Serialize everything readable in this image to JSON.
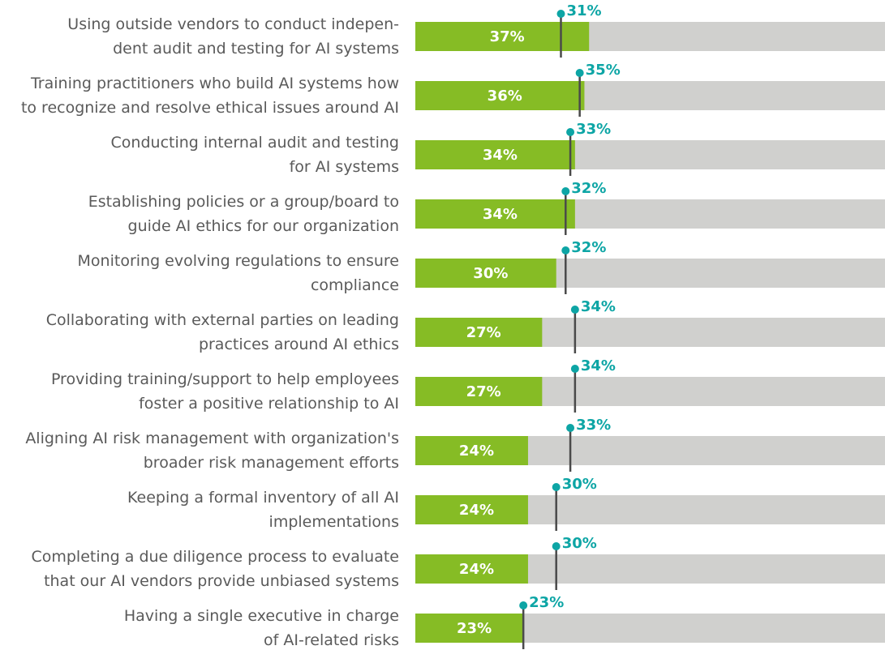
{
  "chart_data": {
    "type": "bar_marker",
    "categories": [
      "Using outside vendors to conduct indepen-\ndent audit and testing for AI systems",
      "Training practitioners who build AI systems how\nto recognize and resolve ethical issues around AI",
      "Conducting internal audit and testing\nfor AI systems",
      "Establishing policies or a group/board to\nguide AI ethics for our organization",
      "Monitoring evolving regulations to ensure\ncompliance",
      "Collaborating with external parties on leading\npractices around AI ethics",
      "Providing training/support to help employees\nfoster a positive relationship to AI",
      "Aligning AI risk management with organization's\nbroader risk management efforts",
      "Keeping a formal inventory of all AI\nimplementations",
      "Completing a due diligence process to evaluate\nthat our AI vendors provide unbiased systems",
      "Having a single executive in charge\nof AI-related risks"
    ],
    "series": [
      {
        "color": "#86bc25",
        "values": [
          37,
          36,
          34,
          34,
          30,
          27,
          27,
          24,
          24,
          24,
          23
        ],
        "value_labels": [
          "37%",
          "36%",
          "34%",
          "34%",
          "30%",
          "27%",
          "27%",
          "24%",
          "24%",
          "24%",
          "23%"
        ]
      },
      {
        "color": "#0da5a5",
        "values": [
          31,
          35,
          33,
          32,
          32,
          34,
          34,
          33,
          30,
          30,
          23
        ],
        "value_labels": [
          "31%",
          "35%",
          "33%",
          "32%",
          "32%",
          "34%",
          "34%",
          "33%",
          "30%",
          "30%",
          "23%"
        ]
      }
    ],
    "track_color": "#d0d0ce",
    "xlim": [
      0,
      100
    ]
  }
}
